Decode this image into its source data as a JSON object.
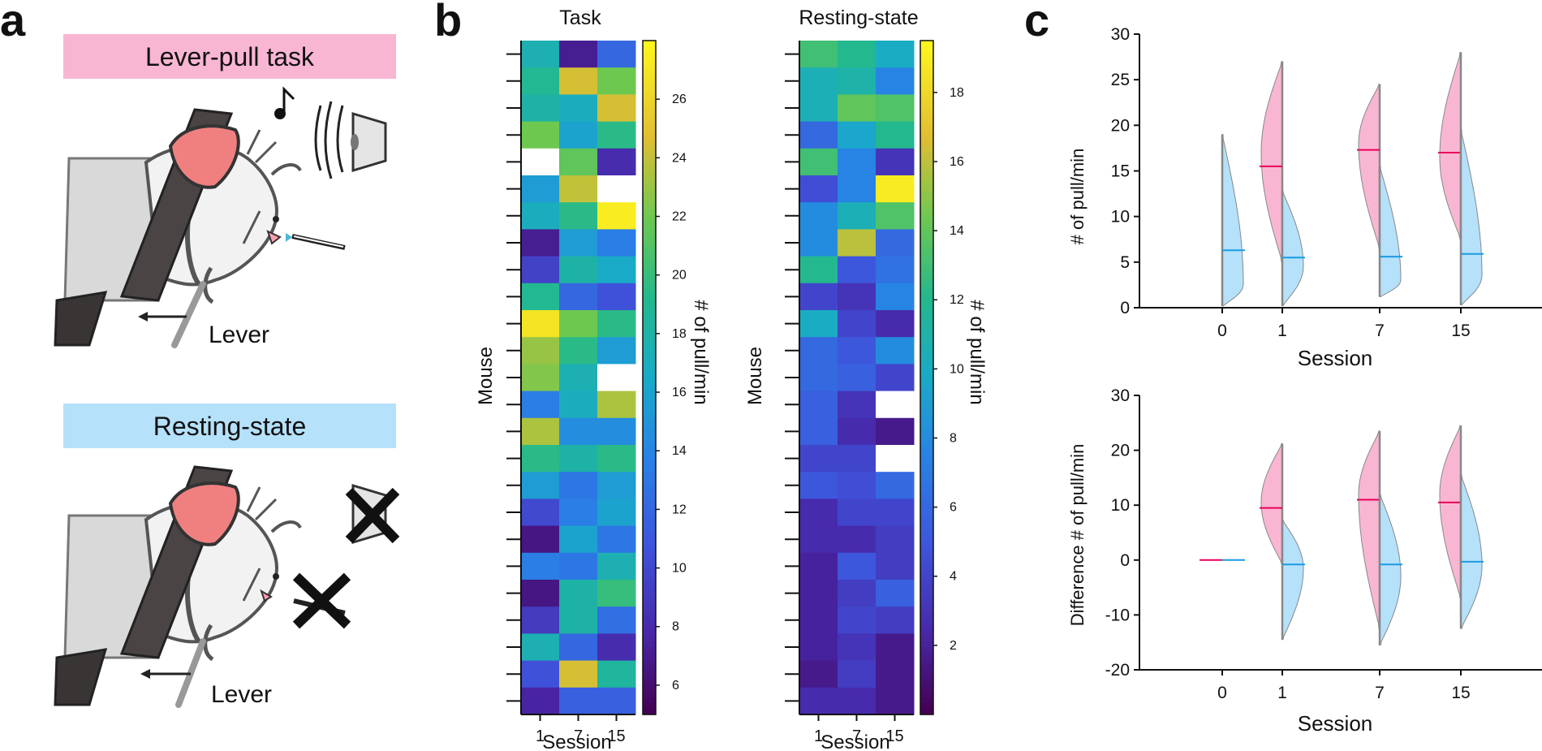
{
  "panel_letters": {
    "a": "a",
    "b": "b",
    "c": "c"
  },
  "panel_a": {
    "task_banner": "Lever-pull task",
    "rest_banner": "Resting-state",
    "lever_label": "Lever",
    "lever_label_2": "Lever",
    "colors": {
      "task_banner": "#f9b6d2",
      "rest_banner": "#b5e1fa"
    }
  },
  "chart_data": [
    {
      "type": "heatmap",
      "title": "Task",
      "xlabel": "Session",
      "ylabel": "Mouse",
      "x_categories": [
        "1",
        "7",
        "15"
      ],
      "colorbar_label": "# of pull/min",
      "colorbar_ticks": [
        6,
        8,
        10,
        12,
        14,
        16,
        18,
        20,
        22,
        24,
        26
      ],
      "clim": [
        5,
        28
      ],
      "values": [
        [
          17.5,
          7.0,
          12.0
        ],
        [
          19.0,
          24.5,
          22.0
        ],
        [
          18.0,
          17.0,
          24.5
        ],
        [
          22.0,
          16.0,
          19.5
        ],
        [
          null,
          21.5,
          8.0
        ],
        [
          15.5,
          24.0,
          null
        ],
        [
          17.0,
          19.5,
          27.5
        ],
        [
          7.0,
          15.5,
          13.5
        ],
        [
          9.5,
          18.0,
          16.5
        ],
        [
          19.0,
          12.0,
          10.5
        ],
        [
          27.0,
          22.0,
          19.5
        ],
        [
          23.0,
          19.5,
          15.5
        ],
        [
          22.5,
          17.5,
          null
        ],
        [
          13.5,
          17.0,
          23.5
        ],
        [
          23.5,
          14.5,
          14.5
        ],
        [
          19.5,
          18.0,
          19.5
        ],
        [
          15.5,
          13.0,
          15.5
        ],
        [
          10.0,
          13.5,
          16.0
        ],
        [
          6.5,
          16.0,
          13.0
        ],
        [
          13.5,
          13.0,
          17.5
        ],
        [
          6.5,
          18.0,
          20.0
        ],
        [
          9.0,
          18.0,
          12.5
        ],
        [
          17.5,
          12.0,
          8.0
        ],
        [
          10.5,
          24.5,
          18.5
        ],
        [
          7.5,
          11.5,
          11.5
        ]
      ]
    },
    {
      "type": "heatmap",
      "title": "Resting-state",
      "xlabel": "Session",
      "ylabel": "Mouse",
      "x_categories": [
        "1",
        "7",
        "15"
      ],
      "colorbar_label": "# of pull/min",
      "colorbar_ticks": [
        2,
        4,
        6,
        8,
        10,
        12,
        14,
        16,
        18
      ],
      "clim": [
        0,
        19.5
      ],
      "values": [
        [
          13.0,
          12.0,
          10.0
        ],
        [
          10.5,
          11.0,
          7.5
        ],
        [
          10.5,
          14.0,
          13.5
        ],
        [
          6.0,
          9.5,
          12.0
        ],
        [
          13.0,
          7.5,
          3.0
        ],
        [
          4.5,
          7.5,
          19.0
        ],
        [
          8.0,
          10.5,
          13.5
        ],
        [
          8.0,
          16.0,
          6.0
        ],
        [
          12.0,
          5.0,
          6.5
        ],
        [
          4.0,
          3.0,
          7.5
        ],
        [
          10.0,
          4.0,
          2.5
        ],
        [
          6.0,
          5.0,
          8.0
        ],
        [
          6.0,
          5.5,
          4.0
        ],
        [
          5.5,
          3.0,
          null
        ],
        [
          5.5,
          2.5,
          1.5
        ],
        [
          4.0,
          4.0,
          null
        ],
        [
          5.0,
          4.5,
          6.0
        ],
        [
          2.5,
          4.0,
          4.0
        ],
        [
          2.5,
          2.5,
          3.5
        ],
        [
          2.0,
          5.0,
          3.5
        ],
        [
          2.0,
          3.5,
          5.5
        ],
        [
          2.0,
          4.0,
          3.5
        ],
        [
          2.0,
          3.0,
          1.5
        ],
        [
          1.5,
          3.5,
          1.5
        ],
        [
          2.5,
          2.5,
          1.5
        ]
      ]
    },
    {
      "type": "violin",
      "xlabel": "Session",
      "ylabel": "# of pull/min",
      "categories": [
        "0",
        "1",
        "7",
        "15"
      ],
      "ylim": [
        0,
        30
      ],
      "yticks": [
        0,
        5,
        10,
        15,
        20,
        25,
        30
      ],
      "series": [
        {
          "name": "Task",
          "color": "#f9b6d2",
          "median_color": "#e8005a",
          "side": "left",
          "medians": [
            null,
            15.5,
            17.3,
            17.0
          ],
          "mins": [
            null,
            5.0,
            6.5,
            7.5
          ],
          "maxs": [
            null,
            27.0,
            24.5,
            28.0
          ],
          "peaks": [
            null,
            17.0,
            18.0,
            16.5
          ]
        },
        {
          "name": "Resting-state",
          "color": "#b5e1fa",
          "median_color": "#1a9be0",
          "side": "right",
          "medians": [
            6.3,
            5.5,
            5.6,
            5.9
          ],
          "mins": [
            0.2,
            0.2,
            1.2,
            0.3
          ],
          "maxs": [
            19.0,
            12.8,
            15.5,
            19.5
          ],
          "peaks": [
            2.5,
            4.5,
            3.0,
            3.5
          ]
        }
      ]
    },
    {
      "type": "violin",
      "xlabel": "Session",
      "ylabel": "Difference # of pull/min",
      "categories": [
        "0",
        "1",
        "7",
        "15"
      ],
      "ylim": [
        -20,
        30
      ],
      "yticks": [
        -20,
        -10,
        0,
        10,
        20,
        30
      ],
      "series": [
        {
          "name": "Task",
          "color": "#f9b6d2",
          "median_color": "#e8005a",
          "side": "left",
          "medians": [
            0,
            9.5,
            11.0,
            10.5
          ],
          "mins": [
            null,
            -0.7,
            -12.5,
            -7.0
          ],
          "maxs": [
            null,
            21.2,
            23.5,
            24.5
          ],
          "peaks": [
            null,
            10.5,
            12.0,
            12.0
          ]
        },
        {
          "name": "Resting-state",
          "color": "#b5e1fa",
          "median_color": "#1a9be0",
          "side": "right",
          "medians": [
            0,
            -0.8,
            -0.8,
            -0.3
          ],
          "mins": [
            null,
            -14.5,
            -15.5,
            -12.5
          ],
          "maxs": [
            null,
            7.3,
            12.0,
            15.5
          ],
          "peaks": [
            null,
            -1.5,
            -3.0,
            -1.0
          ]
        }
      ]
    }
  ]
}
